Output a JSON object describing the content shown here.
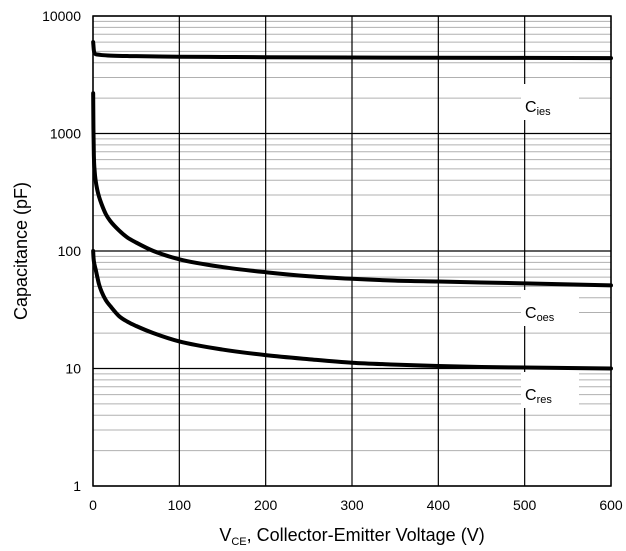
{
  "chart_data": {
    "type": "line",
    "xlabel": {
      "main": "V",
      "sub": "CE",
      "rest": ", Collector-Emitter Voltage (V)"
    },
    "ylabel": "Capacitance (pF)",
    "xlim": [
      0,
      600
    ],
    "ylim": [
      1,
      10000
    ],
    "yscale": "log",
    "grid": true,
    "x_ticks": [
      0,
      100,
      200,
      300,
      400,
      500,
      600
    ],
    "x_tick_labels": [
      "0",
      "100",
      "200",
      "300",
      "400",
      "500",
      "600"
    ],
    "y_ticks": [
      1,
      10,
      100,
      1000,
      10000
    ],
    "y_tick_labels": [
      "1",
      "10",
      "100",
      "1000",
      "10000"
    ],
    "series": [
      {
        "name": "Cies",
        "label_main": "C",
        "label_sub": "ies",
        "x": [
          0.2,
          1,
          2,
          5,
          10,
          20,
          50,
          100,
          150,
          200,
          300,
          400,
          500,
          600
        ],
        "y": [
          6000,
          5100,
          4800,
          4700,
          4650,
          4600,
          4550,
          4500,
          4480,
          4460,
          4430,
          4410,
          4400,
          4380
        ]
      },
      {
        "name": "Coes",
        "label_main": "C",
        "label_sub": "oes",
        "x": [
          0.2,
          0.5,
          1,
          2,
          3,
          5,
          7,
          10,
          15,
          20,
          30,
          40,
          50,
          70,
          100,
          150,
          200,
          250,
          300,
          350,
          400,
          450,
          500,
          550,
          600
        ],
        "y": [
          2200,
          1100,
          650,
          470,
          400,
          330,
          290,
          250,
          205,
          180,
          150,
          130,
          118,
          100,
          85,
          73,
          66,
          61,
          58,
          56,
          55,
          54,
          53,
          52,
          51
        ]
      },
      {
        "name": "Cres",
        "label_main": "C",
        "label_sub": "res",
        "x": [
          0.2,
          0.5,
          1,
          2,
          3,
          5,
          7,
          10,
          15,
          20,
          30,
          40,
          50,
          70,
          100,
          150,
          200,
          250,
          300,
          350,
          400,
          450,
          500,
          550,
          600
        ],
        "y": [
          100,
          90,
          82,
          75,
          70,
          60,
          52,
          45,
          38,
          34,
          28,
          25,
          23,
          20,
          17,
          14.5,
          13,
          12,
          11.2,
          10.8,
          10.5,
          10.3,
          10.2,
          10.1,
          10
        ]
      }
    ],
    "line_color": "#000000",
    "grid_major_color": "#000000",
    "grid_minor_color": "#b0b0b0"
  }
}
